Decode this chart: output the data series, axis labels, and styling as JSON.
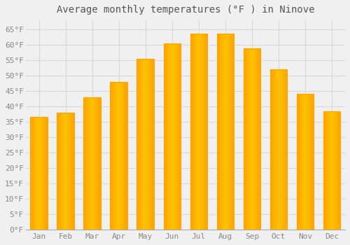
{
  "title": "Average monthly temperatures (°F ) in Ninove",
  "months": [
    "Jan",
    "Feb",
    "Mar",
    "Apr",
    "May",
    "Jun",
    "Jul",
    "Aug",
    "Sep",
    "Oct",
    "Nov",
    "Dec"
  ],
  "values": [
    36.5,
    38.0,
    43.0,
    48.0,
    55.5,
    60.5,
    63.7,
    63.7,
    59.0,
    52.0,
    44.0,
    38.5
  ],
  "bar_color_center": "#FFD966",
  "bar_color_edge": "#FFA500",
  "background_color": "#f0f0f0",
  "plot_bg_color": "#f0f0f0",
  "grid_color": "#d8d8d8",
  "ylim": [
    0,
    68
  ],
  "yticks": [
    0,
    5,
    10,
    15,
    20,
    25,
    30,
    35,
    40,
    45,
    50,
    55,
    60,
    65
  ],
  "title_fontsize": 10,
  "tick_fontsize": 8,
  "tick_color": "#888888",
  "title_color": "#555555"
}
